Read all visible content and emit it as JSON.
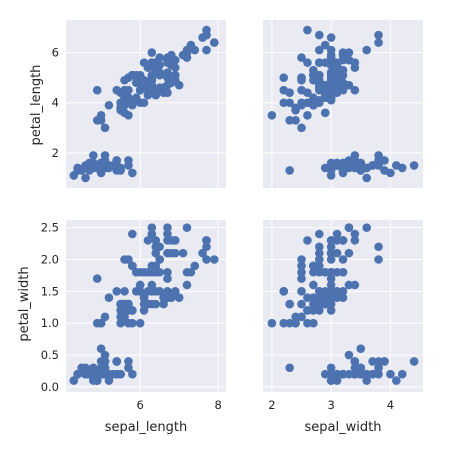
{
  "chart_data": {
    "type": "scatter",
    "layout": "pairgrid-2x2",
    "x_vars": [
      "sepal_length",
      "sepal_width"
    ],
    "y_vars": [
      "petal_length",
      "petal_width"
    ],
    "xlabels": [
      "sepal_length",
      "sepal_width"
    ],
    "ylabels": [
      "petal_length",
      "petal_width"
    ],
    "xlims": [
      [
        4.1,
        8.2
      ],
      [
        1.85,
        4.55
      ]
    ],
    "ylims": [
      [
        0.6,
        7.3
      ],
      [
        -0.08,
        2.62
      ]
    ],
    "xticks": [
      [
        6,
        8
      ],
      [
        2,
        3,
        4
      ]
    ],
    "yticks": [
      [
        2,
        4,
        6
      ],
      [
        0.0,
        0.5,
        1.0,
        1.5,
        2.0,
        2.5
      ]
    ],
    "ytick_labels": [
      [
        "2",
        "4",
        "6"
      ],
      [
        "0.0",
        "0.5",
        "1.0",
        "1.5",
        "2.0",
        "2.5"
      ]
    ],
    "xtick_labels": [
      [
        "6",
        "8"
      ],
      [
        "2",
        "3",
        "4"
      ]
    ],
    "grid": true,
    "point_color": "#4c72b0",
    "background_color": "#eaeaf2",
    "points": {
      "sepal_length": [
        5.1,
        4.9,
        4.7,
        4.6,
        5.0,
        5.4,
        4.6,
        5.0,
        4.4,
        4.9,
        5.4,
        4.8,
        4.8,
        4.3,
        5.8,
        5.7,
        5.4,
        5.1,
        5.7,
        5.1,
        5.4,
        5.1,
        4.6,
        5.1,
        4.8,
        5.0,
        5.0,
        5.2,
        5.2,
        4.7,
        4.8,
        5.4,
        5.2,
        5.5,
        4.9,
        5.0,
        5.5,
        4.9,
        4.4,
        5.1,
        5.0,
        4.5,
        4.4,
        5.0,
        5.1,
        4.8,
        5.1,
        4.6,
        5.3,
        5.0,
        7.0,
        6.4,
        6.9,
        5.5,
        6.5,
        5.7,
        6.3,
        4.9,
        6.6,
        5.2,
        5.0,
        5.9,
        6.0,
        6.1,
        5.6,
        6.7,
        5.6,
        5.8,
        6.2,
        5.6,
        5.9,
        6.1,
        6.3,
        6.1,
        6.4,
        6.6,
        6.8,
        6.7,
        6.0,
        5.7,
        5.5,
        5.5,
        5.8,
        6.0,
        5.4,
        6.0,
        6.7,
        6.3,
        5.6,
        5.5,
        5.5,
        6.1,
        5.8,
        5.0,
        5.6,
        5.7,
        5.7,
        6.2,
        5.1,
        5.7,
        6.3,
        5.8,
        7.1,
        6.3,
        6.5,
        7.6,
        4.9,
        7.3,
        6.7,
        7.2,
        6.5,
        6.4,
        6.8,
        5.7,
        5.8,
        6.4,
        6.5,
        7.7,
        7.7,
        6.0,
        6.9,
        5.6,
        7.7,
        6.3,
        6.7,
        7.2,
        6.2,
        6.1,
        6.4,
        7.2,
        7.4,
        7.9,
        6.4,
        6.3,
        6.1,
        7.7,
        6.3,
        6.4,
        6.0,
        6.9,
        6.7,
        6.9,
        5.8,
        6.8,
        6.7,
        6.7,
        6.3,
        6.5,
        6.2,
        5.9
      ],
      "sepal_width": [
        3.5,
        3.0,
        3.2,
        3.1,
        3.6,
        3.9,
        3.4,
        3.4,
        2.9,
        3.1,
        3.7,
        3.4,
        3.0,
        3.0,
        4.0,
        4.4,
        3.9,
        3.5,
        3.8,
        3.8,
        3.4,
        3.7,
        3.6,
        3.3,
        3.4,
        3.0,
        3.4,
        3.5,
        3.4,
        3.2,
        3.1,
        3.4,
        4.1,
        4.2,
        3.1,
        3.2,
        3.5,
        3.6,
        3.0,
        3.4,
        3.5,
        2.3,
        3.2,
        3.5,
        3.8,
        3.0,
        3.8,
        3.2,
        3.7,
        3.3,
        3.2,
        3.2,
        3.1,
        2.3,
        2.8,
        2.8,
        3.3,
        2.4,
        2.9,
        2.7,
        2.0,
        3.0,
        2.2,
        2.9,
        2.9,
        3.1,
        3.0,
        2.7,
        2.2,
        2.5,
        3.2,
        2.8,
        2.5,
        2.8,
        2.9,
        3.0,
        2.8,
        3.0,
        2.9,
        2.6,
        2.4,
        2.4,
        2.7,
        2.7,
        3.0,
        3.4,
        3.1,
        2.3,
        3.0,
        2.5,
        2.6,
        3.0,
        2.6,
        2.3,
        2.7,
        3.0,
        2.9,
        2.9,
        2.5,
        2.8,
        3.3,
        2.7,
        3.0,
        2.9,
        3.0,
        3.0,
        2.5,
        2.9,
        2.5,
        3.6,
        3.2,
        2.7,
        3.0,
        2.5,
        2.8,
        3.2,
        3.0,
        3.8,
        2.6,
        2.2,
        3.2,
        2.8,
        2.8,
        2.7,
        3.3,
        3.2,
        2.8,
        3.0,
        2.8,
        3.0,
        2.8,
        3.8,
        2.8,
        2.8,
        2.6,
        3.0,
        3.4,
        3.1,
        3.0,
        3.1,
        3.1,
        3.1,
        2.7,
        3.2,
        3.3,
        3.0,
        2.5,
        3.0,
        3.4,
        3.0
      ],
      "petal_length": [
        1.4,
        1.4,
        1.3,
        1.5,
        1.4,
        1.7,
        1.4,
        1.5,
        1.4,
        1.5,
        1.5,
        1.6,
        1.4,
        1.1,
        1.2,
        1.5,
        1.3,
        1.4,
        1.7,
        1.5,
        1.7,
        1.5,
        1.0,
        1.7,
        1.9,
        1.6,
        1.6,
        1.5,
        1.4,
        1.6,
        1.6,
        1.5,
        1.5,
        1.4,
        1.5,
        1.2,
        1.3,
        1.4,
        1.3,
        1.5,
        1.3,
        1.3,
        1.3,
        1.6,
        1.9,
        1.4,
        1.6,
        1.4,
        1.5,
        1.4,
        4.7,
        4.5,
        4.9,
        4.0,
        4.6,
        4.5,
        4.7,
        3.3,
        4.6,
        3.9,
        3.5,
        4.2,
        4.0,
        4.7,
        3.6,
        4.4,
        4.5,
        4.1,
        4.5,
        3.9,
        4.8,
        4.0,
        4.9,
        4.7,
        4.3,
        4.4,
        4.8,
        5.0,
        4.5,
        3.5,
        3.8,
        3.7,
        3.9,
        5.1,
        4.5,
        4.5,
        4.7,
        4.4,
        4.1,
        4.0,
        4.4,
        4.6,
        4.0,
        3.3,
        4.2,
        4.2,
        4.2,
        4.3,
        3.0,
        4.1,
        6.0,
        5.1,
        5.9,
        5.6,
        5.8,
        6.6,
        4.5,
        6.3,
        5.8,
        6.1,
        5.1,
        5.3,
        5.5,
        5.0,
        5.1,
        5.3,
        5.5,
        6.7,
        6.9,
        5.0,
        5.7,
        4.9,
        6.7,
        4.9,
        5.7,
        6.0,
        4.8,
        4.9,
        5.6,
        5.8,
        6.1,
        6.4,
        5.6,
        5.1,
        5.6,
        6.1,
        5.6,
        5.5,
        4.8,
        5.4,
        5.6,
        5.1,
        5.1,
        5.9,
        5.7,
        5.2,
        5.0,
        5.2,
        5.4,
        5.1
      ],
      "petal_width": [
        0.2,
        0.2,
        0.2,
        0.2,
        0.2,
        0.4,
        0.3,
        0.2,
        0.2,
        0.1,
        0.2,
        0.2,
        0.1,
        0.1,
        0.2,
        0.4,
        0.4,
        0.3,
        0.3,
        0.3,
        0.2,
        0.4,
        0.2,
        0.5,
        0.2,
        0.2,
        0.4,
        0.2,
        0.2,
        0.2,
        0.2,
        0.4,
        0.1,
        0.2,
        0.2,
        0.2,
        0.2,
        0.1,
        0.2,
        0.2,
        0.3,
        0.3,
        0.2,
        0.6,
        0.4,
        0.3,
        0.2,
        0.2,
        0.2,
        0.2,
        1.4,
        1.5,
        1.5,
        1.3,
        1.5,
        1.3,
        1.6,
        1.0,
        1.3,
        1.4,
        1.0,
        1.5,
        1.0,
        1.4,
        1.3,
        1.4,
        1.5,
        1.0,
        1.5,
        1.1,
        1.8,
        1.3,
        1.5,
        1.2,
        1.3,
        1.4,
        1.4,
        1.7,
        1.5,
        1.0,
        1.1,
        1.0,
        1.2,
        1.6,
        1.5,
        1.6,
        1.5,
        1.3,
        1.3,
        1.3,
        1.2,
        1.4,
        1.2,
        1.0,
        1.3,
        1.2,
        1.3,
        1.3,
        1.1,
        1.3,
        2.5,
        1.9,
        2.1,
        1.8,
        2.2,
        2.1,
        1.7,
        1.8,
        1.8,
        2.5,
        2.0,
        1.9,
        2.1,
        2.0,
        2.4,
        2.3,
        1.8,
        2.2,
        2.3,
        1.5,
        2.3,
        2.0,
        2.0,
        1.8,
        2.1,
        1.8,
        1.8,
        1.8,
        2.1,
        1.6,
        1.9,
        2.0,
        2.2,
        1.5,
        1.4,
        2.3,
        2.4,
        1.8,
        1.8,
        2.1,
        2.4,
        2.3,
        1.9,
        2.3,
        2.5,
        2.3,
        1.9,
        2.0,
        2.3,
        1.8
      ]
    }
  }
}
